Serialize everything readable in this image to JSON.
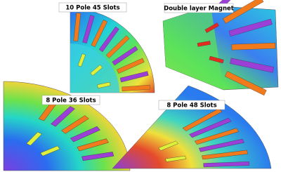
{
  "panels": [
    {
      "label": "10 Pole 45 Slots"
    },
    {
      "label": "Double layer Magnet"
    },
    {
      "label": "8 Pole 36 Slots"
    },
    {
      "label": "8 Pole 48 Slots"
    }
  ]
}
